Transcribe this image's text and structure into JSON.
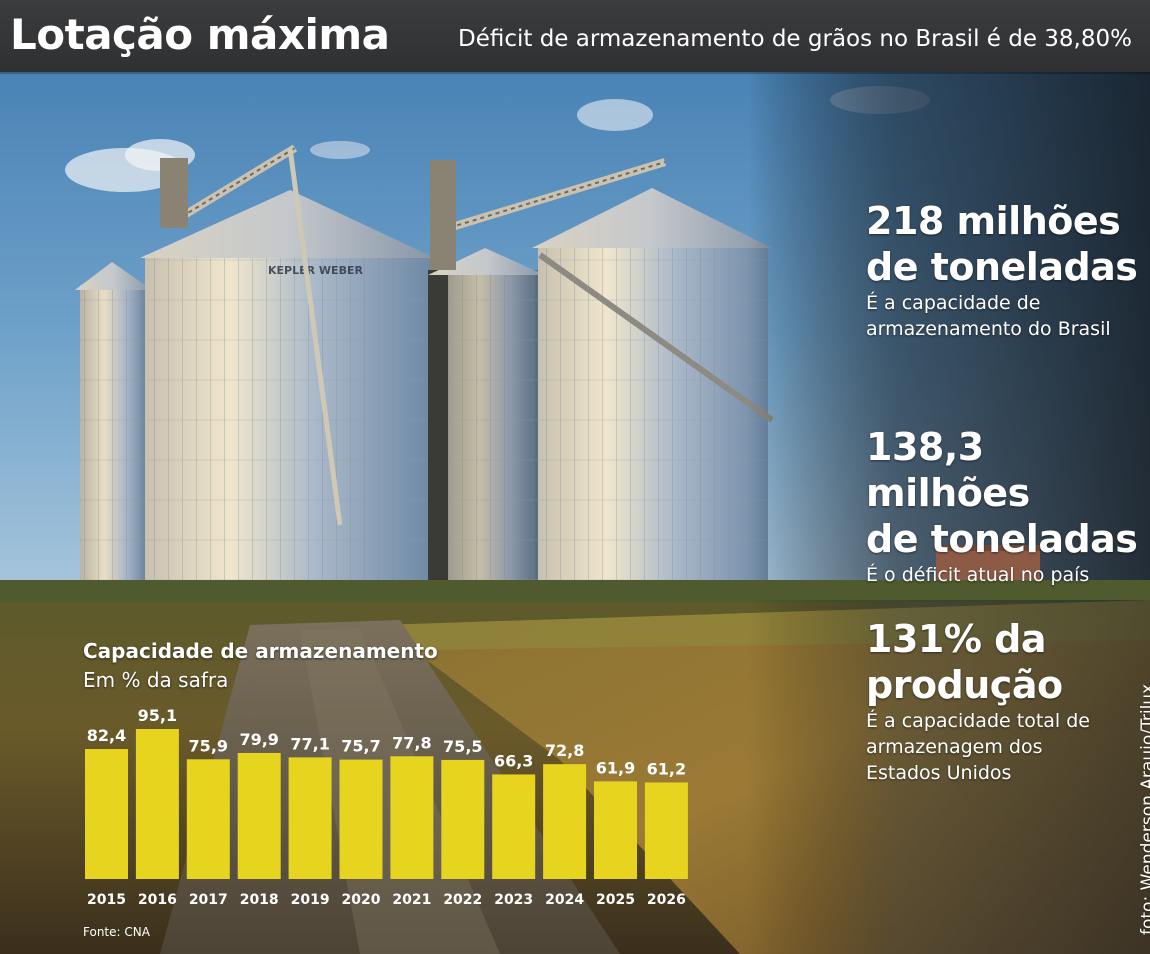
{
  "header": {
    "title": "Lotação máxima",
    "subtitle": "Déficit de armazenamento de grãos no Brasil é de 38,80%"
  },
  "facts": [
    {
      "big_line1": "218 milhões",
      "big_line2": "de toneladas",
      "small_line1": "É a capacidade de",
      "small_line2": "armazenamento do Brasil",
      "small_line3": ""
    },
    {
      "big_line1": "138,3 milhões",
      "big_line2": "de toneladas",
      "small_line1": "É o déficit atual no país",
      "small_line2": "",
      "small_line3": ""
    },
    {
      "big_line1": "131% da",
      "big_line2": "produção",
      "small_line1": "É a capacidade total de",
      "small_line2": "armazenagem dos",
      "small_line3": "Estados Unidos"
    }
  ],
  "chart_data": {
    "type": "bar",
    "title": "Capacidade de armazenamento",
    "subtitle": "Em % da safra",
    "categories": [
      "2015",
      "2016",
      "2017",
      "2018",
      "2019",
      "2020",
      "2021",
      "2022",
      "2023",
      "2024",
      "2025",
      "2026"
    ],
    "values": [
      82.4,
      95.1,
      75.9,
      79.9,
      77.1,
      75.7,
      77.8,
      75.5,
      66.3,
      72.8,
      61.9,
      61.2
    ],
    "value_labels": [
      "82,4",
      "95,1",
      "75,9",
      "79,9",
      "77,1",
      "75,7",
      "77,8",
      "75,5",
      "66,3",
      "72,8",
      "61,9",
      "61,2"
    ],
    "ylim": [
      0,
      100
    ],
    "bar_color": "#e6d41f",
    "grid": false
  },
  "source": "Fonte: CNA",
  "photo_credit": "foto: Wenderson Araujo/Trilux"
}
